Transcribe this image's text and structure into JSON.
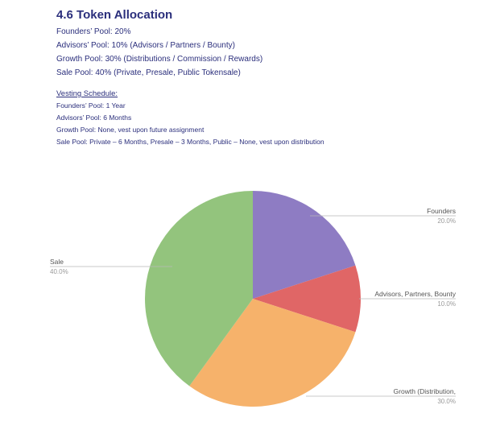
{
  "section": {
    "title": "4.6 Token Allocation",
    "pools": [
      "Founders’ Pool: 20%",
      "Advisors’ Pool: 10% (Advisors / Partners / Bounty)",
      "Growth Pool: 30% (Distributions / Commission / Rewards)",
      "Sale Pool: 40% (Private, Presale, Public Tokensale)"
    ],
    "vesting_heading": "Vesting Schedule:",
    "vesting": [
      "Founders’ Pool: 1 Year",
      "Advisors’ Pool: 6 Months",
      "Growth Pool: None, vest upon future assignment",
      "Sale Pool: Private – 6 Months, Presale – 3 Months, Public – None, vest upon distribution"
    ]
  },
  "chart_data": {
    "type": "pie",
    "title": "",
    "slices": [
      {
        "label": "Founders",
        "value": 20.0,
        "value_label": "20.0%",
        "color": "#8e7cc3"
      },
      {
        "label": "Advisors, Partners, Bounty",
        "value": 10.0,
        "value_label": "10.0%",
        "color": "#e06666"
      },
      {
        "label": "Growth (Distribution,",
        "value": 30.0,
        "value_label": "30.0%",
        "color": "#f6b26b"
      },
      {
        "label": "Sale",
        "value": 40.0,
        "value_label": "40.0%",
        "color": "#93c47d"
      }
    ],
    "start_angle": "12 o'clock",
    "direction": "clockwise",
    "legend": "none (callout labels)"
  }
}
